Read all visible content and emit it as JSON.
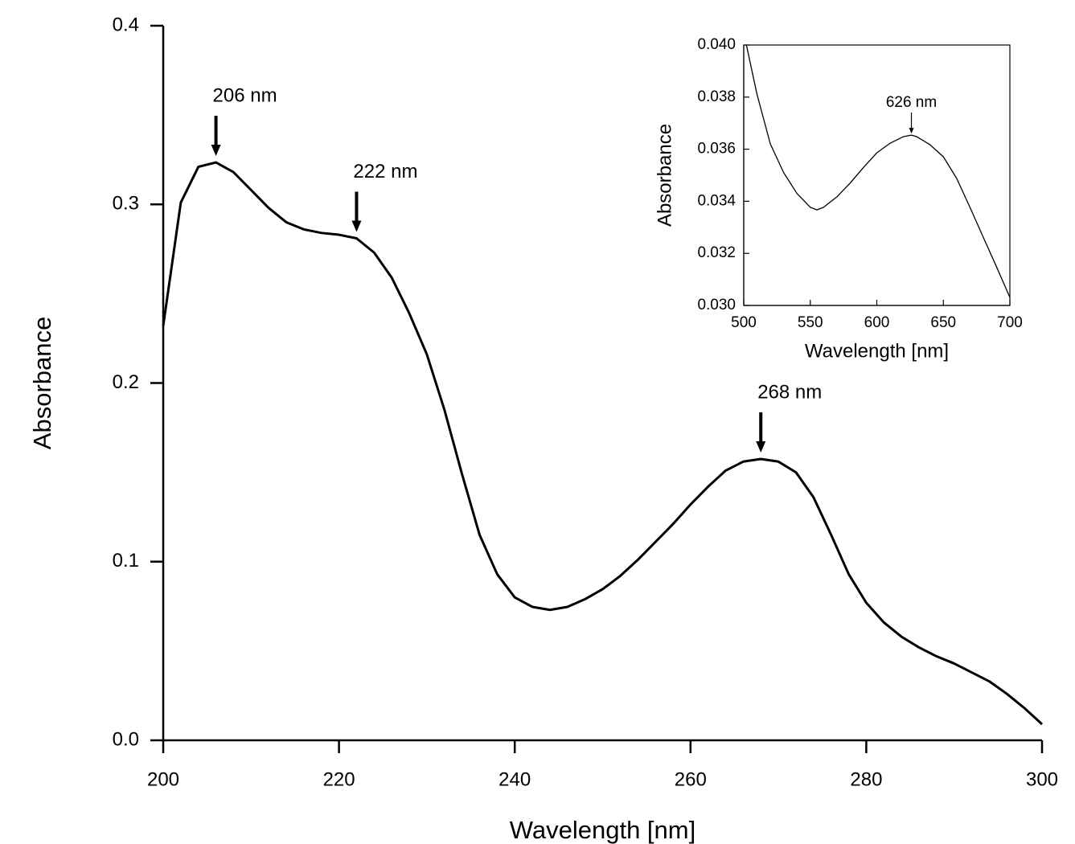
{
  "chart_data": [
    {
      "type": "line",
      "xlabel": "Wavelength [nm]",
      "ylabel": "Absorbance",
      "xlim": [
        200,
        300
      ],
      "ylim": [
        0,
        0.4
      ],
      "xticks": [
        200,
        220,
        240,
        260,
        280,
        300
      ],
      "yticks": [
        {
          "value": 0,
          "label": "0.0"
        },
        0.1,
        0.2,
        0.3,
        0.4
      ],
      "series": [
        {
          "color": "#000000",
          "x": [
            200,
            202,
            204,
            206,
            208,
            210,
            212,
            214,
            216,
            218,
            220,
            222,
            224,
            226,
            228,
            230,
            232,
            234,
            236,
            238,
            240,
            242,
            244,
            246,
            248,
            250,
            252,
            254,
            256,
            258,
            260,
            262,
            264,
            266,
            268,
            270,
            272,
            274,
            276,
            278,
            280,
            282,
            284,
            286,
            288,
            290,
            292,
            294,
            296,
            298,
            300
          ],
          "values": [
            0.232,
            0.301,
            0.321,
            0.3235,
            0.318,
            0.308,
            0.298,
            0.29,
            0.286,
            0.284,
            0.283,
            0.281,
            0.273,
            0.259,
            0.239,
            0.216,
            0.185,
            0.149,
            0.115,
            0.093,
            0.08,
            0.0747,
            0.073,
            0.0747,
            0.079,
            0.0846,
            0.092,
            0.101,
            0.111,
            0.121,
            0.132,
            0.142,
            0.151,
            0.156,
            0.1575,
            0.156,
            0.15,
            0.136,
            0.115,
            0.093,
            0.077,
            0.066,
            0.058,
            0.052,
            0.047,
            0.043,
            0.038,
            0.033,
            0.026,
            0.018,
            0.009
          ]
        }
      ],
      "annotations": [
        {
          "text": "206 nm",
          "x": 206,
          "y": 0.3235
        },
        {
          "text": "222 nm",
          "x": 222,
          "y": 0.281
        },
        {
          "text": "268 nm",
          "x": 268,
          "y": 0.1575
        }
      ]
    },
    {
      "type": "line",
      "xlabel": "Wavelength [nm]",
      "ylabel": "Absorbance",
      "xlim": [
        500,
        700
      ],
      "ylim": [
        0.03,
        0.04
      ],
      "xticks": [
        500,
        550,
        600,
        650,
        700
      ],
      "yticks": [
        {
          "value": 0.03,
          "label": "0.030"
        },
        0.032,
        0.034,
        0.036,
        0.038,
        {
          "value": 0.04,
          "label": "0.040"
        }
      ],
      "series": [
        {
          "color": "#000000",
          "x": [
            502,
            510,
            520,
            530,
            540,
            550,
            555,
            560,
            570,
            580,
            590,
            600,
            610,
            620,
            626,
            630,
            640,
            650,
            660,
            670,
            680,
            690,
            700
          ],
          "values": [
            0.04,
            0.0381,
            0.0362,
            0.0351,
            0.0343,
            0.03377,
            0.03367,
            0.03377,
            0.03417,
            0.0347,
            0.0353,
            0.03586,
            0.03623,
            0.03648,
            0.03654,
            0.03648,
            0.03617,
            0.03571,
            0.03488,
            0.03377,
            0.03262,
            0.03148,
            0.03031
          ]
        }
      ],
      "annotations": [
        {
          "text": "626 nm",
          "x": 626,
          "y": 0.03654
        }
      ]
    }
  ]
}
